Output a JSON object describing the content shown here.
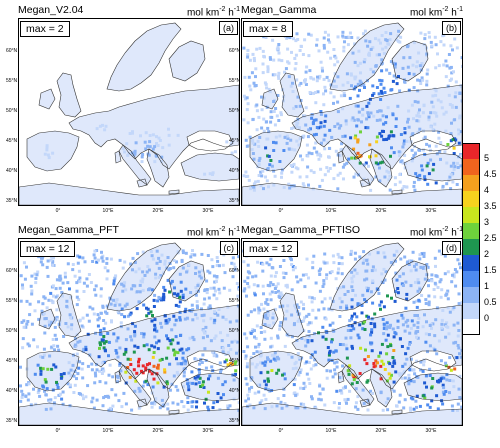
{
  "units": {
    "base": "mol km",
    "exp1": "-2",
    "mid": " h",
    "exp2": "-1"
  },
  "lat_labels": [
    "60°N",
    "55°N",
    "50°N",
    "45°N",
    "40°N",
    "35°N"
  ],
  "lon_labels": [
    "0°",
    "10°E",
    "20°E",
    "30°E"
  ],
  "panels": [
    {
      "title": "Megan_V2.04",
      "max": "max = 2",
      "tag": "(a)",
      "intensity": 0.15
    },
    {
      "title": "Megan_Gamma",
      "max": "max = 8",
      "tag": "(b)",
      "intensity": 0.75
    },
    {
      "title": "Megan_Gamma_PFT",
      "max": "max = 12",
      "tag": "(c)",
      "intensity": 1.0
    },
    {
      "title": "Megan_Gamma_PFTISO",
      "max": "max = 12",
      "tag": "(d)",
      "intensity": 1.0
    }
  ],
  "colorbar": {
    "labels": [
      "5",
      "4.5",
      "4",
      "3.5",
      "3",
      "2.5",
      "2",
      "1.5",
      "1",
      "0.5",
      "0"
    ],
    "colors": [
      "#e8262a",
      "#f0641e",
      "#f5a01e",
      "#f6d21e",
      "#c8e61e",
      "#6ed23c",
      "#1e9650",
      "#1e5ad2",
      "#4f8cf0",
      "#8cb4f5",
      "#c3d7fa",
      "#ffffff"
    ]
  }
}
